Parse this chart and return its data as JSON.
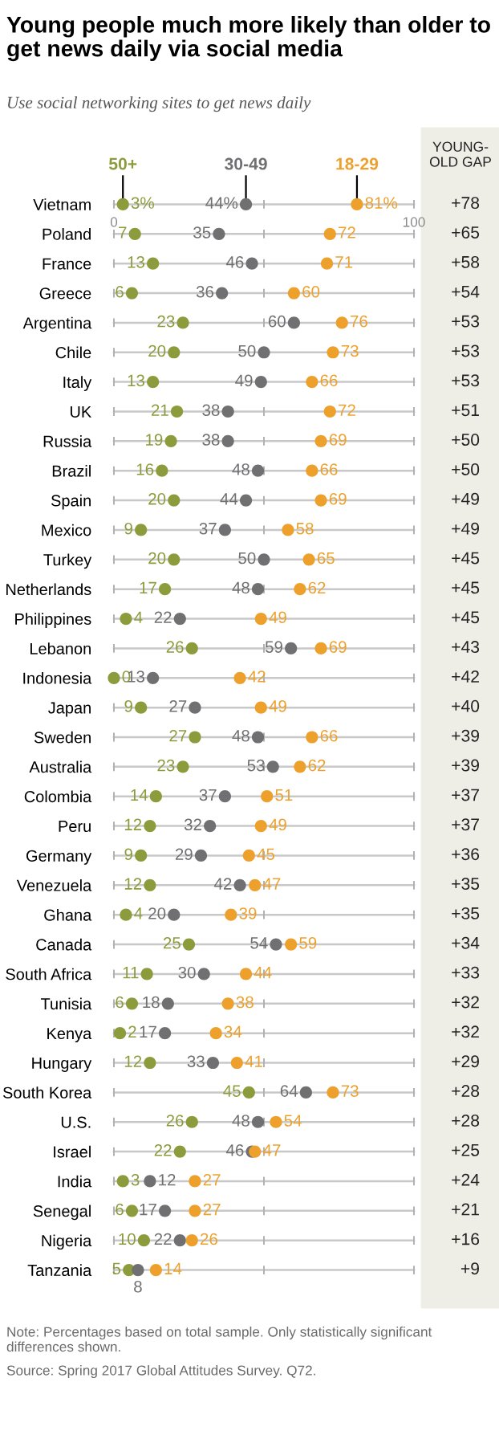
{
  "chart_data": {
    "type": "scatter",
    "title": "Young people much more likely than older to get news daily via social media",
    "subtitle": "Use social networking sites to get news daily",
    "y2label": "YOUNG-OLD GAP",
    "orientation": "horizontal",
    "legend": "top",
    "grid": "y",
    "marker": "circle",
    "data_labels": true,
    "categories": [
      "Vietnam",
      "Poland",
      "France",
      "Greece",
      "Argentina",
      "Chile",
      "Italy",
      "UK",
      "Russia",
      "Brazil",
      "Spain",
      "Mexico",
      "Turkey",
      "Netherlands",
      "Philippines",
      "Lebanon",
      "Indonesia",
      "Japan",
      "Sweden",
      "Australia",
      "Colombia",
      "Peru",
      "Germany",
      "Venezuela",
      "Ghana",
      "Canada",
      "South Africa",
      "Tunisia",
      "Kenya",
      "Hungary",
      "South Korea",
      "U.S.",
      "Israel",
      "India",
      "Senegal",
      "Nigeria",
      "Tanzania"
    ],
    "xlim": [
      0,
      100
    ],
    "xticks": [
      0,
      {
        "value": 50,
        "label": null
      },
      100
    ],
    "series": [
      {
        "name": "50+",
        "color": "#8c9c3c",
        "values": [
          3,
          7,
          13,
          6,
          23,
          20,
          13,
          21,
          19,
          16,
          20,
          9,
          20,
          17,
          4,
          26,
          0,
          9,
          27,
          23,
          14,
          12,
          9,
          12,
          4,
          25,
          11,
          6,
          2,
          12,
          45,
          26,
          22,
          3,
          6,
          10,
          5
        ],
        "value_labels": [
          "3%",
          "7",
          "13",
          "6",
          "23",
          "20",
          "13",
          "21",
          "19",
          "16",
          "20",
          "9",
          "20",
          "17",
          "4",
          "26",
          "0",
          "9",
          "27",
          "23",
          "14",
          "12",
          "9",
          "12",
          "4",
          "25",
          "11",
          "6",
          "2",
          "12",
          "45",
          "26",
          "22",
          "3",
          "6",
          "10",
          "5"
        ]
      },
      {
        "name": "30-49",
        "color": "#707073",
        "values": [
          44,
          35,
          46,
          36,
          60,
          50,
          49,
          38,
          38,
          48,
          44,
          37,
          50,
          48,
          22,
          59,
          13,
          27,
          48,
          53,
          37,
          32,
          29,
          42,
          20,
          54,
          30,
          18,
          17,
          33,
          64,
          48,
          46,
          12,
          17,
          22,
          8
        ],
        "value_labels": [
          "44%",
          "35",
          "46",
          "36",
          "60",
          "50",
          "49",
          "38",
          "38",
          "48",
          "44",
          "37",
          "50",
          "48",
          "22",
          "59",
          "13",
          "27",
          "48",
          "53",
          "37",
          "32",
          "29",
          "42",
          "20",
          "54",
          "30",
          "18",
          "17",
          "33",
          "64",
          "48",
          "46",
          "12",
          "17",
          "22",
          "8"
        ]
      },
      {
        "name": "18-29",
        "color": "#eda12c",
        "values": [
          81,
          72,
          71,
          60,
          76,
          73,
          66,
          72,
          69,
          66,
          69,
          58,
          65,
          62,
          49,
          69,
          42,
          49,
          66,
          62,
          51,
          49,
          45,
          47,
          39,
          59,
          44,
          38,
          34,
          41,
          73,
          54,
          47,
          27,
          27,
          26,
          14
        ],
        "value_labels": [
          "81%",
          "72",
          "71",
          "60",
          "76",
          "73",
          "66",
          "72",
          "69",
          "66",
          "69",
          "58",
          "65",
          "62",
          "49",
          "69",
          "42",
          "49",
          "66",
          "62",
          "51",
          "49",
          "45",
          "47",
          "39",
          "59",
          "44",
          "38",
          "34",
          "41",
          "73",
          "54",
          "47",
          "27",
          "27",
          "26",
          "14"
        ]
      }
    ],
    "annotations": [
      "+78",
      "+65",
      "+58",
      "+54",
      "+53",
      "+53",
      "+53",
      "+51",
      "+50",
      "+50",
      "+49",
      "+49",
      "+45",
      "+45",
      "+45",
      "+43",
      "+42",
      "+40",
      "+39",
      "+39",
      "+37",
      "+37",
      "+36",
      "+35",
      "+35",
      "+34",
      "+33",
      "+32",
      "+32",
      "+29",
      "+28",
      "+28",
      "+25",
      "+24",
      "+21",
      "+16",
      "+9",
      "Note: Percentages based on total sample. Only statistically significant differences shown.",
      "Source: Spring 2017 Global Attitudes Survey. Q72."
    ]
  }
}
